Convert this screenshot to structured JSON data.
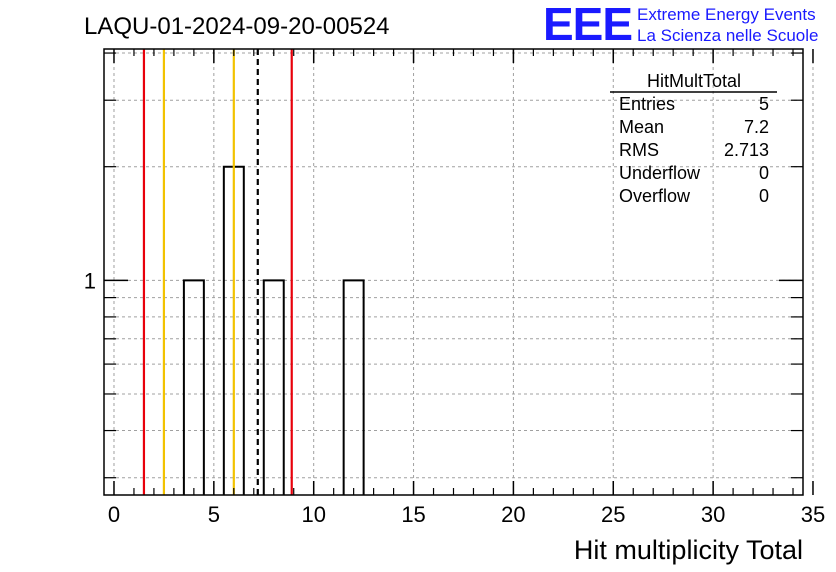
{
  "chart_data": {
    "type": "bar",
    "title": "LAQU-01-2024-09-20-00524",
    "xlabel": "Hit multiplicity Total",
    "ylabel": "",
    "xlim": [
      -0.5,
      34.5
    ],
    "ylim": [
      0.27,
      4.1
    ],
    "ylog": true,
    "grid": true,
    "x_ticks": [
      0,
      5,
      10,
      15,
      20,
      25,
      30,
      35
    ],
    "y_ticks": [
      1
    ],
    "bin_width": 1,
    "bins": [
      {
        "x": 4,
        "value": 1
      },
      {
        "x": 6,
        "value": 2
      },
      {
        "x": 8,
        "value": 1
      },
      {
        "x": 12,
        "value": 1
      }
    ],
    "markers": [
      {
        "x": 1.5,
        "color": "#e8000b",
        "style": "solid"
      },
      {
        "x": 2.5,
        "color": "#f2c200",
        "style": "solid"
      },
      {
        "x": 6.0,
        "color": "#f2c200",
        "style": "solid"
      },
      {
        "x": 7.2,
        "color": "#000000",
        "style": "dashed"
      },
      {
        "x": 8.9,
        "color": "#e8000b",
        "style": "solid"
      }
    ],
    "stats": {
      "name": "HitMultTotal",
      "rows": [
        {
          "label": "Entries",
          "value": "5"
        },
        {
          "label": "Mean",
          "value": "7.2"
        },
        {
          "label": "RMS",
          "value": "2.713"
        },
        {
          "label": "Underflow",
          "value": "0"
        },
        {
          "label": "Overflow",
          "value": "0"
        }
      ]
    }
  },
  "logo": {
    "letters": "EEE",
    "line1": "Extreme Energy Events",
    "line2": "La Scienza nelle Scuole",
    "color": "#1a1aff"
  }
}
